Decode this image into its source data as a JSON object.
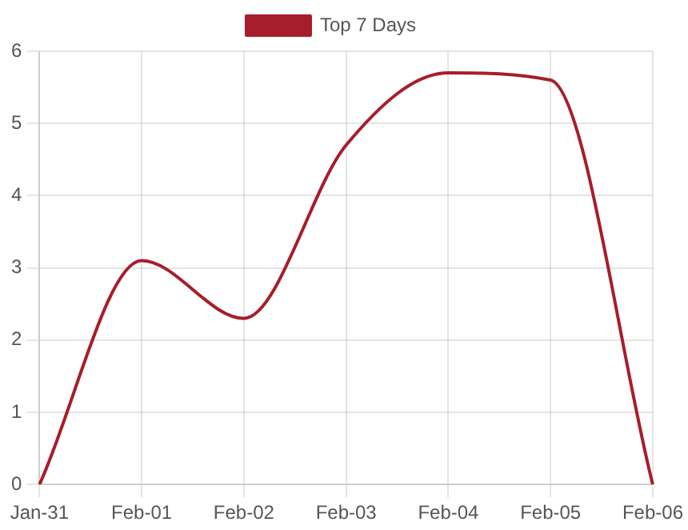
{
  "chart_data": {
    "type": "line",
    "categories": [
      "Jan-31",
      "Feb-01",
      "Feb-02",
      "Feb-03",
      "Feb-04",
      "Feb-05",
      "Feb-06"
    ],
    "series": [
      {
        "name": "Top 7 Days",
        "color": "#a61e2a",
        "values": [
          0,
          3.1,
          2.3,
          4.7,
          5.7,
          5.6,
          0
        ]
      }
    ],
    "ylim": [
      0,
      6
    ],
    "yticks": [
      0,
      1,
      2,
      3,
      4,
      5,
      6
    ],
    "grid": true,
    "legend": "top",
    "marker": "none",
    "line_style": "solid"
  }
}
